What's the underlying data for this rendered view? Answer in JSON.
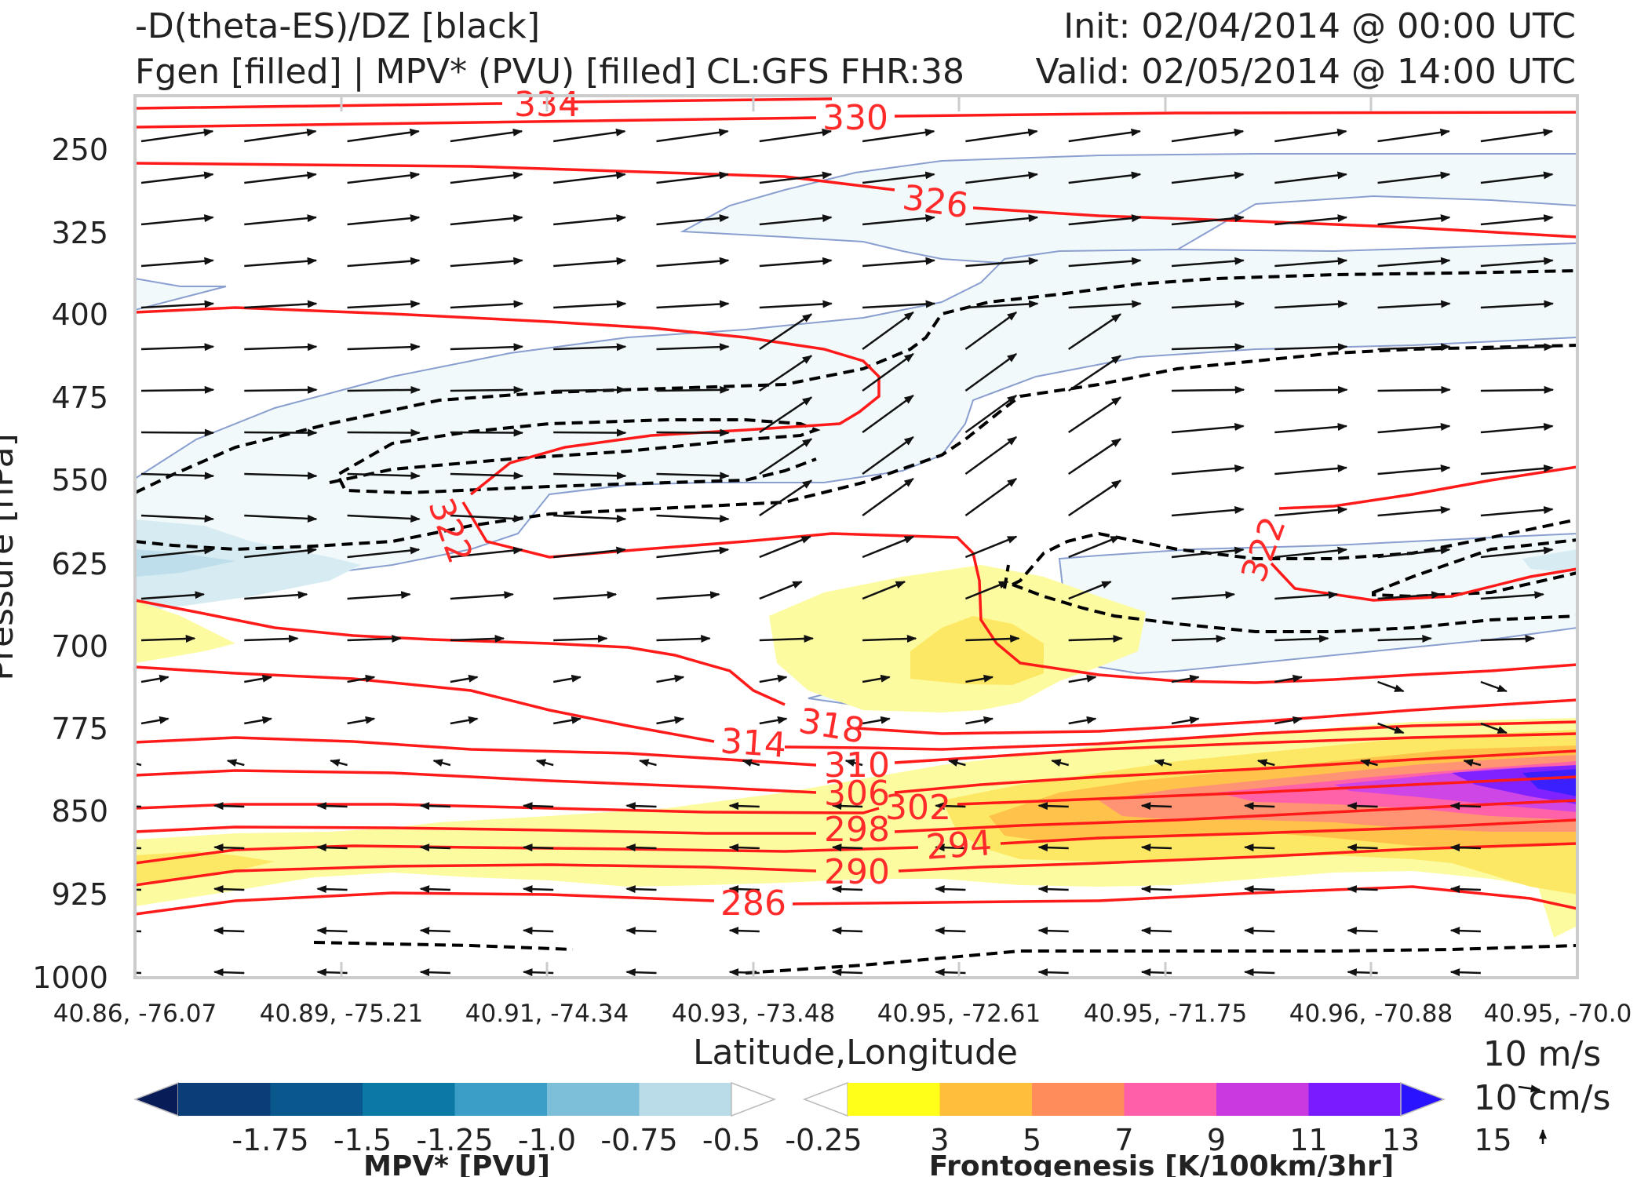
{
  "header": {
    "left_line1": "-D(theta-ES)/DZ [black]",
    "left_line2": "Fgen [filled] | MPV* (PVU) [filled]",
    "center": "CL:GFS FHR:38",
    "right_line1": "Init: 02/04/2014 @ 00:00 UTC",
    "right_line2": "Valid: 02/05/2014 @ 14:00 UTC"
  },
  "chart_data": {
    "type": "cross-section",
    "ylabel": "Pressure [hPa]",
    "xlabel": "Latitude,Longitude",
    "y_ticks": [
      "250",
      "325",
      "400",
      "475",
      "550",
      "625",
      "700",
      "775",
      "850",
      "925",
      "1000"
    ],
    "y_tick_values": [
      250,
      325,
      400,
      475,
      550,
      625,
      700,
      775,
      850,
      925,
      1000
    ],
    "x_ticks": [
      "40.86, -76.07",
      "40.89, -75.21",
      "40.91, -74.34",
      "40.93, -73.48",
      "40.95, -72.61",
      "40.95, -71.75",
      "40.96, -70.88",
      "40.95, -70.0"
    ],
    "ylim": [
      1000,
      210
    ],
    "theta_e_contours": {
      "color": "#ff1a1a",
      "labels": [
        "334",
        "330",
        "326",
        "322",
        "322",
        "318",
        "314",
        "310",
        "306",
        "302",
        "298",
        "294",
        "290",
        "286"
      ]
    },
    "static_stability_contours": {
      "color": "#000000",
      "style": "dashed"
    },
    "wind_reference": {
      "label1": "10 m/s",
      "label2": "10 cm/s"
    },
    "colorbars": [
      {
        "name": "MPV* [PVU]",
        "tick_labels": [
          "-1.75",
          "-1.5",
          "-1.25",
          "-1.0",
          "-0.75",
          "-0.5",
          "-0.25"
        ],
        "colors": [
          "#081d58",
          "#0b3d78",
          "#09578d",
          "#0a7aa4",
          "#3a9ec6",
          "#7dbfd9",
          "#b9dce8",
          "#ffffff"
        ],
        "extend": "both"
      },
      {
        "name": "Frontogenesis [K/100km/3hr]",
        "tick_labels": [
          "3",
          "5",
          "7",
          "9",
          "11",
          "13",
          "15"
        ],
        "colors": [
          "#ffffff",
          "#ffff1a",
          "#ffbf3a",
          "#ff8c5a",
          "#ff5fa8",
          "#c83ae0",
          "#7a1aff",
          "#2a14ff"
        ],
        "extend": "both"
      }
    ]
  }
}
